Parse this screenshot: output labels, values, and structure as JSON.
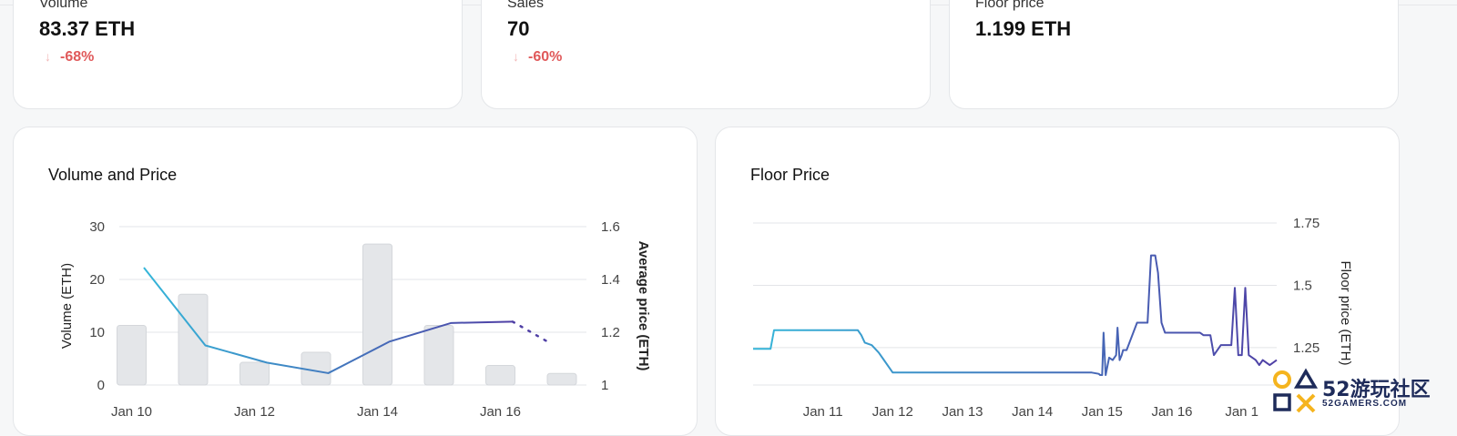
{
  "stats": [
    {
      "label": "Volume",
      "value": "83.37 ETH",
      "change": "-68%",
      "change_icon": "arrow-down-icon"
    },
    {
      "label": "Sales",
      "value": "70",
      "change": "-60%",
      "change_icon": "arrow-down-icon"
    },
    {
      "label": "Floor price",
      "value": "1.199 ETH"
    }
  ],
  "colors": {
    "bar": "#e4e6e9",
    "line_start": "#35b6d9",
    "line_end": "#4f3fa5",
    "negative": "#e0595a"
  },
  "watermark": {
    "text": "52游玩社区",
    "sub": "52GAMERS.COM"
  },
  "chart_data": [
    {
      "type": "bar+line",
      "title": "Volume and Price",
      "xlabel": "",
      "ylabel": "Volume (ETH)",
      "y2label": "Average price (ETH)",
      "ylim": [
        0,
        30
      ],
      "y2lim": [
        1,
        1.6
      ],
      "yticks": [
        "0",
        "10",
        "20",
        "30"
      ],
      "y2ticks": [
        "1",
        "1.2",
        "1.4",
        "1.6"
      ],
      "x_ticks": [
        "Jan 10",
        "Jan 12",
        "Jan 14",
        "Jan 16"
      ],
      "bars": [
        {
          "x": 10.1,
          "v": 11.3
        },
        {
          "x": 11.1,
          "v": 17.2
        },
        {
          "x": 12.1,
          "v": 4.3
        },
        {
          "x": 13.1,
          "v": 6.2
        },
        {
          "x": 14.1,
          "v": 26.7
        },
        {
          "x": 15.1,
          "v": 11.3
        },
        {
          "x": 16.1,
          "v": 3.7
        },
        {
          "x": 17.1,
          "v": 2.2
        }
      ],
      "price_line": [
        {
          "x": 10.3,
          "y": 1.445
        },
        {
          "x": 11.3,
          "y": 1.15
        },
        {
          "x": 12.3,
          "y": 1.085
        },
        {
          "x": 13.3,
          "y": 1.045
        },
        {
          "x": 14.3,
          "y": 1.165
        },
        {
          "x": 15.3,
          "y": 1.235
        },
        {
          "x": 16.3,
          "y": 1.24
        }
      ],
      "price_dotted": [
        {
          "x": 16.3,
          "y": 1.24
        },
        {
          "x": 16.9,
          "y": 1.16
        }
      ],
      "grid": true,
      "legend": "none"
    },
    {
      "type": "line",
      "title": "Floor Price",
      "xlabel": "",
      "ylabel": "Floor price (ETH)",
      "ylim": [
        1.1,
        1.75
      ],
      "yticks": [
        "1.25",
        "1.5",
        "1.75"
      ],
      "x_ticks": [
        "Jan 11",
        "Jan 12",
        "Jan 13",
        "Jan 14",
        "Jan 15",
        "Jan 16",
        "Jan 1"
      ],
      "x": [
        10.0,
        10.2,
        10.25,
        10.3,
        10.45,
        10.7,
        10.9,
        11.0,
        11.05,
        11.1,
        11.2,
        11.5,
        11.55,
        11.6,
        11.7,
        11.8,
        11.85,
        12.0,
        12.5,
        13.0,
        13.5,
        14.0,
        14.5,
        14.75,
        14.85,
        14.95,
        14.97,
        15.0,
        15.02,
        15.05,
        15.1,
        15.15,
        15.2,
        15.22,
        15.25,
        15.28,
        15.3,
        15.35,
        15.5,
        15.6,
        15.65,
        15.7,
        15.72,
        15.76,
        15.8,
        15.85,
        15.9,
        16.0,
        16.2,
        16.4,
        16.45,
        16.5,
        16.55,
        16.6,
        16.7,
        16.8,
        16.85,
        16.9,
        16.95,
        17.0,
        17.05,
        17.1,
        17.2,
        17.25,
        17.3,
        17.4,
        17.5
      ],
      "y": [
        1.245,
        1.245,
        1.245,
        1.32,
        1.32,
        1.32,
        1.32,
        1.32,
        1.32,
        1.32,
        1.32,
        1.32,
        1.3,
        1.27,
        1.26,
        1.23,
        1.21,
        1.15,
        1.15,
        1.15,
        1.15,
        1.15,
        1.15,
        1.15,
        1.15,
        1.145,
        1.14,
        1.14,
        1.31,
        1.14,
        1.21,
        1.2,
        1.22,
        1.33,
        1.2,
        1.22,
        1.24,
        1.24,
        1.35,
        1.35,
        1.35,
        1.62,
        1.62,
        1.62,
        1.55,
        1.35,
        1.31,
        1.31,
        1.31,
        1.31,
        1.3,
        1.3,
        1.3,
        1.22,
        1.26,
        1.26,
        1.26,
        1.49,
        1.22,
        1.22,
        1.49,
        1.22,
        1.2,
        1.18,
        1.2,
        1.18,
        1.2
      ],
      "grid": true,
      "legend": "none"
    }
  ]
}
